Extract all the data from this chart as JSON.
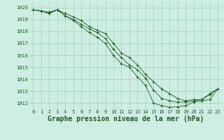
{
  "title": "Graphe pression niveau de la mer (hPa)",
  "xlabel_ticks": [
    "0",
    "1",
    "2",
    "3",
    "4",
    "5",
    "6",
    "7",
    "8",
    "9",
    "10",
    "11",
    "12",
    "13",
    "14",
    "15",
    "16",
    "17",
    "18",
    "19",
    "20",
    "21",
    "22",
    "23"
  ],
  "yticks": [
    1012,
    1013,
    1014,
    1015,
    1016,
    1017,
    1018,
    1019,
    1020
  ],
  "ylim": [
    1011.5,
    1020.5
  ],
  "xlim": [
    -0.5,
    23.5
  ],
  "bg_color": "#ceeee4",
  "grid_color": "#9ecebe",
  "line_color": "#1a5c1a",
  "lines": [
    [
      1019.8,
      1019.7,
      1019.6,
      1019.8,
      1019.5,
      1019.2,
      1018.9,
      1018.4,
      1018.1,
      1017.8,
      1017.0,
      1016.2,
      1015.8,
      1015.2,
      1014.4,
      1013.8,
      1013.2,
      1012.8,
      1012.4,
      1012.2,
      1012.3,
      1012.3,
      1012.8,
      1013.2
    ],
    [
      1019.8,
      1019.7,
      1019.5,
      1019.8,
      1019.3,
      1018.9,
      1018.4,
      1017.9,
      1017.5,
      1017.0,
      1016.0,
      1015.3,
      1015.0,
      1014.2,
      1013.5,
      1012.0,
      1011.8,
      1011.65,
      1011.7,
      1011.8,
      1012.1,
      1012.2,
      1012.3,
      1013.2
    ],
    [
      1019.8,
      1019.7,
      1019.5,
      1019.8,
      1019.3,
      1019.0,
      1018.6,
      1018.2,
      1017.9,
      1017.4,
      1016.5,
      1015.8,
      1015.2,
      1014.8,
      1014.1,
      1013.1,
      1012.4,
      1012.2,
      1012.1,
      1012.1,
      1012.2,
      1012.3,
      1012.7,
      1013.2
    ]
  ],
  "title_fontsize": 7,
  "tick_fontsize": 5,
  "marker": "+"
}
